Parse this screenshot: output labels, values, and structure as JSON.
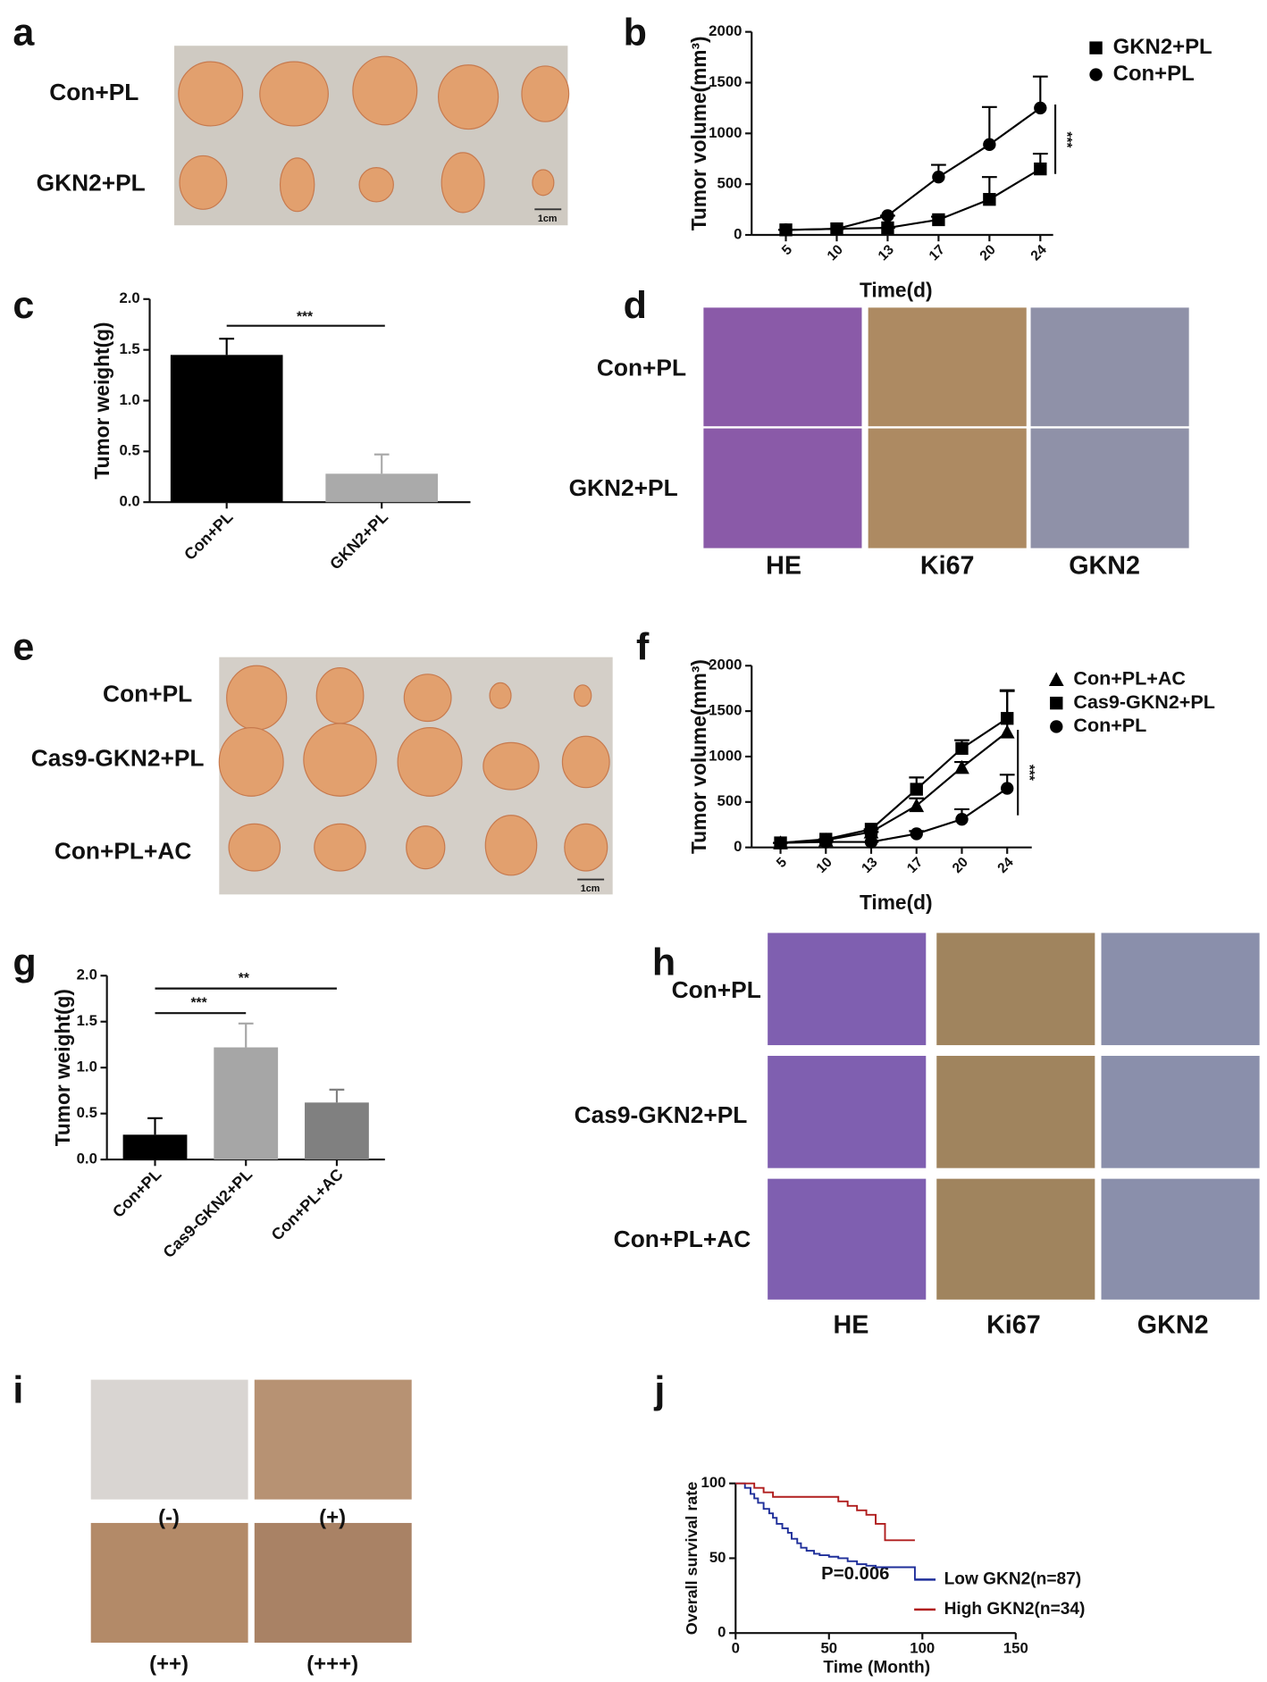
{
  "panels": {
    "letters": [
      "a",
      "b",
      "c",
      "d",
      "e",
      "f",
      "g",
      "h",
      "i",
      "j"
    ],
    "a": {
      "rows": [
        "Con+PL",
        "GKN2+PL"
      ],
      "scale": "1cm"
    },
    "d": {
      "rows": [
        "Con+PL",
        "GKN2+PL"
      ],
      "cols": [
        "HE",
        "Ki67",
        "GKN2"
      ]
    },
    "e": {
      "rows": [
        "Con+PL",
        "Cas9-GKN2+PL",
        "Con+PL+AC"
      ],
      "scale": "1cm"
    },
    "h": {
      "rows": [
        "Con+PL",
        "Cas9-GKN2+PL",
        "Con+PL+AC"
      ],
      "cols": [
        "HE",
        "Ki67",
        "GKN2"
      ]
    },
    "i": {
      "grades": [
        "(-)",
        "(+)",
        "(++)",
        "(+++)"
      ]
    }
  },
  "chart_data": [
    {
      "type": "line",
      "categories": [
        "5",
        "10",
        "13",
        "17",
        "20",
        "24"
      ],
      "xlabel": "Time(d)",
      "ylabel": "Tumor volume(mm³)",
      "annotations": [
        "***"
      ],
      "ylim": [
        0,
        2000
      ],
      "yticks": [
        0,
        500,
        1000,
        1500,
        2000
      ],
      "series": [
        {
          "name": "GKN2+PL",
          "color": "#000000",
          "marker": "square",
          "values": [
            50,
            60,
            70,
            150,
            350,
            650
          ],
          "errors": [
            0,
            0,
            0,
            30,
            220,
            150
          ]
        },
        {
          "name": "Con+PL",
          "color": "#000000",
          "marker": "circle",
          "values": [
            50,
            60,
            190,
            570,
            890,
            1250
          ],
          "errors": [
            0,
            0,
            0,
            120,
            370,
            310
          ]
        }
      ]
    },
    {
      "type": "bar",
      "categories": [
        "Con+PL",
        "GKN2+PL"
      ],
      "ylabel": "Tumor weight(g)",
      "annotations": [
        "***"
      ],
      "values": [
        1.45,
        0.28
      ],
      "errors": [
        0.16,
        0.19
      ],
      "colors": [
        "#000000",
        "#aaaaaa"
      ],
      "ylim": [
        0,
        2
      ],
      "yticks": [
        {
          "value": 0,
          "label": "0.0"
        },
        0.5,
        {
          "value": 1,
          "label": "1.0"
        },
        1.5,
        {
          "value": 2,
          "label": "2.0"
        }
      ]
    },
    {
      "type": "line",
      "categories": [
        "5",
        "10",
        "13",
        "17",
        "20",
        "24"
      ],
      "xlabel": "Time(d)",
      "ylabel": "Tumor volume(mm³)",
      "annotations": [
        "***"
      ],
      "ylim": [
        0,
        2000
      ],
      "yticks": [
        0,
        500,
        1000,
        1500,
        2000
      ],
      "series": [
        {
          "name": "Con+PL+AC",
          "color": "#000000",
          "marker": "triangle",
          "values": [
            50,
            80,
            170,
            460,
            880,
            1270
          ],
          "errors": [
            0,
            0,
            0,
            80,
            60,
            450
          ]
        },
        {
          "name": "Cas9-GKN2+PL",
          "color": "#000000",
          "marker": "square",
          "values": [
            50,
            90,
            200,
            640,
            1090,
            1420
          ],
          "errors": [
            0,
            0,
            0,
            130,
            90,
            310
          ]
        },
        {
          "name": "Con+PL",
          "color": "#000000",
          "marker": "circle",
          "values": [
            50,
            60,
            60,
            150,
            310,
            650
          ],
          "errors": [
            0,
            0,
            0,
            30,
            110,
            150
          ]
        }
      ]
    },
    {
      "type": "bar",
      "categories": [
        "Con+PL",
        "Cas9-GKN2+PL",
        "Con+PL+AC"
      ],
      "ylabel": "Tumor weight(g)",
      "annotations": [
        "***",
        "**"
      ],
      "values": [
        0.27,
        1.22,
        0.62
      ],
      "errors": [
        0.18,
        0.26,
        0.14
      ],
      "colors": [
        "#000000",
        "#a6a6a6",
        "#808080"
      ],
      "ylim": [
        0,
        2
      ],
      "yticks": [
        {
          "value": 0,
          "label": "0.0"
        },
        0.5,
        {
          "value": 1,
          "label": "1.0"
        },
        1.5,
        {
          "value": 2,
          "label": "2.0"
        }
      ]
    },
    {
      "type": "survival",
      "xlabel": "Time  (Month)",
      "ylabel": "Overall survival rate",
      "annotations": [
        "P=0.006"
      ],
      "xlim": [
        0,
        150
      ],
      "xticks": [
        0,
        50,
        100,
        150
      ],
      "ylim": [
        0,
        100
      ],
      "yticks": [
        0,
        50,
        100
      ],
      "step": true,
      "series": [
        {
          "name": "Low GKN2(n=87)",
          "color": "#1f2f9a",
          "x": [
            0,
            5,
            8,
            10,
            12,
            15,
            18,
            20,
            22,
            25,
            28,
            30,
            33,
            35,
            38,
            42,
            45,
            50,
            55,
            60,
            65,
            70,
            75,
            96
          ],
          "values": [
            100,
            97,
            93,
            90,
            87,
            83,
            80,
            77,
            73,
            70,
            67,
            63,
            60,
            57,
            55,
            53,
            52,
            51,
            50,
            48,
            46,
            45,
            44,
            36
          ]
        },
        {
          "name": "High GKN2(n=34)",
          "color": "#b01e1e",
          "x": [
            0,
            10,
            15,
            20,
            30,
            55,
            60,
            65,
            70,
            75,
            80,
            96
          ],
          "values": [
            100,
            97,
            94,
            91,
            91,
            88,
            85,
            82,
            79,
            73,
            62,
            62
          ]
        }
      ]
    }
  ]
}
